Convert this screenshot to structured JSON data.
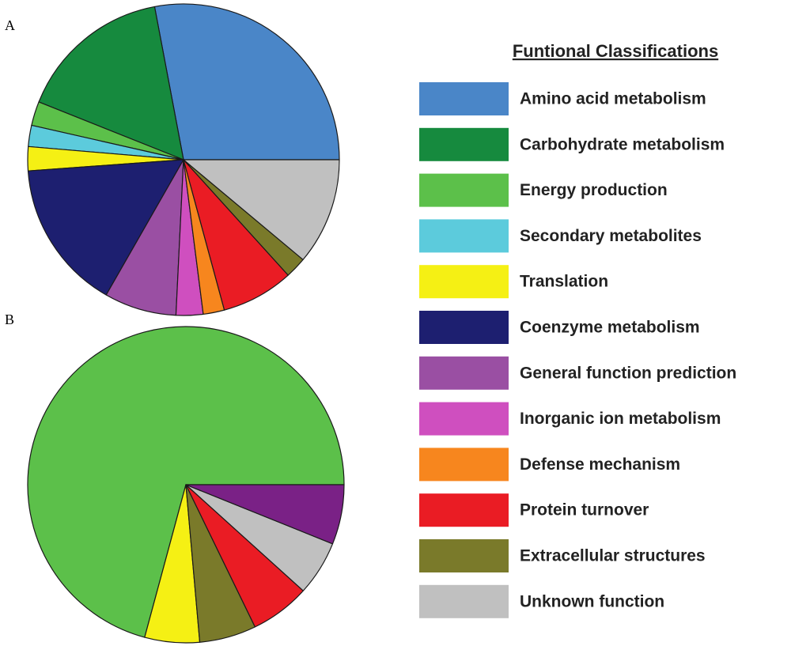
{
  "chart_data": [
    {
      "type": "pie",
      "label": "A",
      "categories": [
        "Amino acid metabolism",
        "Carbohydrate metabolism",
        "Energy production",
        "Secondary metabolites",
        "Translation",
        "Coenzyme metabolism",
        "General function prediction",
        "Inorganic ion metabolism",
        "Defense mechanism",
        "Protein turnover",
        "Extracellular structures",
        "Unknown function"
      ],
      "values": [
        28,
        16,
        2.5,
        2.2,
        2.5,
        15.6,
        7.5,
        2.8,
        2.2,
        7.5,
        2.2,
        11.1
      ],
      "colors": [
        "#4a86c8",
        "#168a3e",
        "#5cc04a",
        "#5ccbdc",
        "#f5f014",
        "#1d1f70",
        "#9a4fa3",
        "#cf4fbf",
        "#f7861e",
        "#ea1c24",
        "#7a7a2a",
        "#c0c0c0"
      ]
    },
    {
      "type": "pie",
      "label": "B",
      "categories": [
        "Energy production",
        "Translation",
        "Extracellular structures",
        "Protein turnover",
        "Unknown function",
        "General function prediction"
      ],
      "values": [
        70.8,
        5.6,
        5.8,
        6.1,
        5.6,
        6.1
      ],
      "colors": [
        "#5cc04a",
        "#f5f014",
        "#7a7a2a",
        "#ea1c24",
        "#c0c0c0",
        "#7a2186"
      ]
    }
  ],
  "legend": {
    "title": "Funtional Classifications",
    "items": [
      {
        "name": "Amino acid metabolism",
        "color": "#4a86c8"
      },
      {
        "name": "Carbohydrate metabolism",
        "color": "#168a3e"
      },
      {
        "name": "Energy production",
        "color": "#5cc04a"
      },
      {
        "name": "Secondary metabolites",
        "color": "#5ccbdc"
      },
      {
        "name": "Translation",
        "color": "#f5f014"
      },
      {
        "name": "Coenzyme metabolism",
        "color": "#1d1f70"
      },
      {
        "name": "General function prediction",
        "color": "#9a4fa3"
      },
      {
        "name": "Inorganic ion metabolism",
        "color": "#cf4fbf"
      },
      {
        "name": "Defense mechanism",
        "color": "#f7861e"
      },
      {
        "name": "Protein turnover",
        "color": "#ea1c24"
      },
      {
        "name": "Extracellular structures",
        "color": "#7a7a2a"
      },
      {
        "name": "Unknown function",
        "color": "#c0c0c0"
      }
    ]
  }
}
